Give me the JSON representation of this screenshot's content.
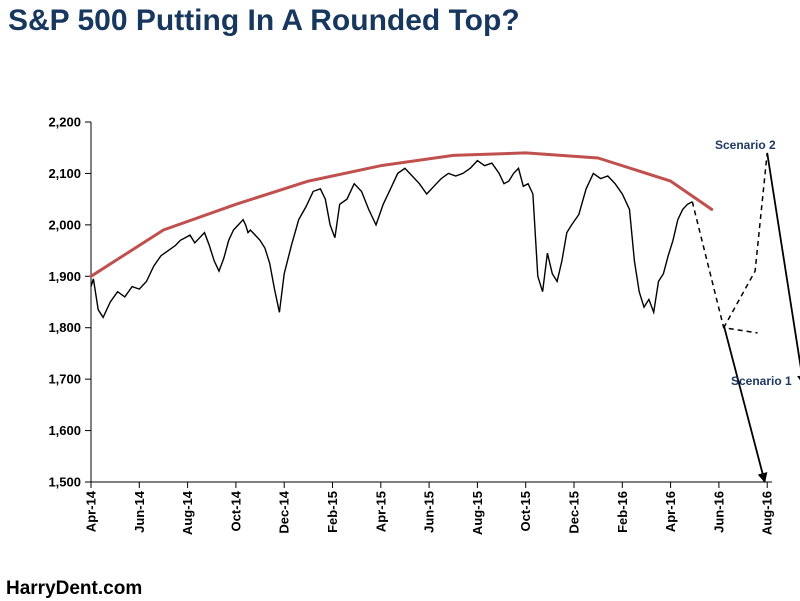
{
  "title": "S&P 500 Putting In A Rounded Top?",
  "footer": "HarryDent.com",
  "colors": {
    "title": "#17375e",
    "price_line": "#000000",
    "top_curve": "#c0504d",
    "annotation": "#1f3864"
  },
  "chart_data": {
    "type": "line",
    "title": "S&P 500 Putting In A Rounded Top?",
    "xlabel": "",
    "ylabel": "",
    "ylim": [
      1500,
      2200
    ],
    "y_ticks": [
      1500,
      1600,
      1700,
      1800,
      1900,
      2000,
      2100,
      2200
    ],
    "y_tick_labels": [
      "1,500",
      "1,600",
      "1,700",
      "1,800",
      "1,900",
      "2,000",
      "2,100",
      "2,200"
    ],
    "x_tick_labels": [
      "Apr-14",
      "Jun-14",
      "Aug-14",
      "Oct-14",
      "Dec-14",
      "Feb-15",
      "Apr-15",
      "Jun-15",
      "Aug-15",
      "Oct-15",
      "Dec-15",
      "Feb-16",
      "Apr-16",
      "Jun-16",
      "Aug-16"
    ],
    "x_unit": "months since Apr-14",
    "xlim": [
      0,
      28.2
    ],
    "series": [
      {
        "name": "S&P 500",
        "style": "solid",
        "x": [
          0,
          0.1,
          0.3,
          0.5,
          0.8,
          1.1,
          1.4,
          1.7,
          2.0,
          2.3,
          2.6,
          2.9,
          3.2,
          3.5,
          3.7,
          3.9,
          4.1,
          4.3,
          4.5,
          4.7,
          4.9,
          5.1,
          5.3,
          5.5,
          5.7,
          5.9,
          6.1,
          6.3,
          6.4,
          6.5,
          6.6,
          6.8,
          7.0,
          7.2,
          7.4,
          7.6,
          7.8,
          8.0,
          8.3,
          8.6,
          8.9,
          9.2,
          9.5,
          9.7,
          9.9,
          10.1,
          10.3,
          10.6,
          10.9,
          11.2,
          11.5,
          11.8,
          12.1,
          12.4,
          12.7,
          13.0,
          13.3,
          13.6,
          13.9,
          14.2,
          14.5,
          14.8,
          15.1,
          15.4,
          15.7,
          16.0,
          16.3,
          16.6,
          16.9,
          17.1,
          17.3,
          17.5,
          17.7,
          17.9,
          18.1,
          18.3,
          18.5,
          18.7,
          18.9,
          19.1,
          19.3,
          19.5,
          19.7,
          19.9,
          20.2,
          20.5,
          20.8,
          21.1,
          21.4,
          21.7,
          22.0,
          22.3,
          22.5,
          22.7,
          22.9,
          23.1,
          23.3,
          23.5,
          23.7,
          23.9,
          24.1,
          24.3,
          24.5,
          24.7,
          24.9
        ],
        "y": [
          1880,
          1895,
          1835,
          1820,
          1850,
          1870,
          1860,
          1880,
          1875,
          1890,
          1920,
          1940,
          1950,
          1960,
          1970,
          1975,
          1980,
          1965,
          1975,
          1985,
          1960,
          1930,
          1910,
          1935,
          1970,
          1990,
          2000,
          2010,
          2000,
          1985,
          1990,
          1980,
          1970,
          1955,
          1925,
          1875,
          1830,
          1905,
          1960,
          2010,
          2035,
          2065,
          2070,
          2050,
          2000,
          1975,
          2040,
          2050,
          2080,
          2065,
          2030,
          2000,
          2040,
          2070,
          2100,
          2110,
          2095,
          2080,
          2060,
          2075,
          2090,
          2100,
          2095,
          2100,
          2110,
          2125,
          2115,
          2120,
          2100,
          2080,
          2085,
          2100,
          2110,
          2075,
          2080,
          2060,
          1900,
          1870,
          1945,
          1905,
          1890,
          1930,
          1985,
          2000,
          2020,
          2070,
          2100,
          2090,
          2095,
          2080,
          2060,
          2030,
          1930,
          1870,
          1840,
          1855,
          1830,
          1890,
          1905,
          1940,
          1970,
          2010,
          2030,
          2040,
          2045
        ]
      },
      {
        "name": "Projection (dashed)",
        "style": "dashed",
        "x": [
          24.9,
          26.2,
          27.6
        ],
        "y": [
          2045,
          1800,
          1790
        ]
      },
      {
        "name": "Scenario 2 path",
        "style": "dashed-then-arrow",
        "x": [
          26.2,
          27.5,
          28.0,
          29.5
        ],
        "y": [
          1800,
          1910,
          2140,
          1690
        ]
      },
      {
        "name": "Scenario 1 path",
        "style": "arrow",
        "x": [
          26.2,
          27.9
        ],
        "y": [
          1805,
          1500
        ]
      },
      {
        "name": "Rounded top",
        "style": "curve",
        "x": [
          0,
          3,
          6,
          9,
          12,
          15,
          18,
          21,
          24,
          25.7
        ],
        "y": [
          1900,
          1990,
          2040,
          2085,
          2115,
          2135,
          2140,
          2130,
          2085,
          2030
        ]
      }
    ],
    "annotations": [
      "Scenario 2",
      "Scenario 1"
    ],
    "grid": false,
    "legend": "none"
  }
}
